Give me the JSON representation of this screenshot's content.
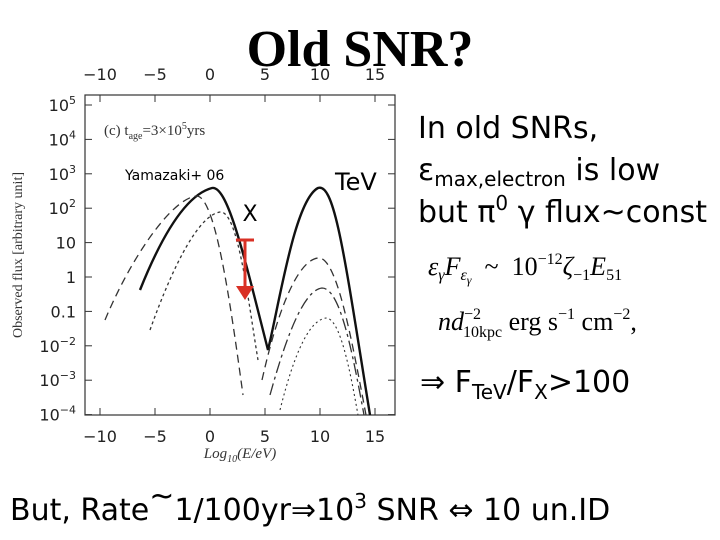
{
  "title": "Old SNR?",
  "figure": {
    "top_ticks": [
      "−10",
      "−5",
      "0",
      "5",
      "10",
      "15"
    ],
    "bottom_ticks": [
      "−10",
      "−5",
      "0",
      "5",
      "10",
      "15"
    ],
    "y_ticks": [
      [
        "10",
        "5"
      ],
      [
        "10",
        "4"
      ],
      [
        "10",
        "3"
      ],
      [
        "10",
        "2"
      ],
      [
        "10"
      ],
      [
        "1"
      ],
      [
        "0.1"
      ],
      [
        "10",
        "−2"
      ],
      [
        "10",
        "−3"
      ],
      [
        "10",
        "−4"
      ]
    ],
    "y_label": "Observed flux [arbitrary unit]",
    "x_label": [
      "Log",
      "10",
      "(E/eV)"
    ],
    "panel": [
      "(c) t",
      "age",
      "=3×10",
      "5",
      "yrs"
    ],
    "citation": "Yamazaki+ 06",
    "x_band": "X",
    "tev_band": "TeV"
  },
  "notes": {
    "line1": "In old SNRs,",
    "line2": [
      "ε",
      "max,electron",
      " is low"
    ],
    "line3": [
      "but π",
      "0",
      " γ flux~const"
    ],
    "formula1": [
      "ε",
      "γ",
      "F",
      "ε",
      "γ",
      "  ~  10",
      "−12",
      "ζ",
      "−1",
      "E",
      "51"
    ],
    "formula2": [
      "nd",
      "−2",
      "10kpc",
      " erg s",
      "−1",
      " cm",
      "−2",
      ","
    ],
    "ratio": [
      "⇒ F",
      "TeV",
      "/F",
      "X",
      ">100"
    ],
    "bottom": [
      "But, Rate",
      "~",
      "1/100yr⇒10",
      "3",
      " SNR ⇔ 10 un.ID"
    ]
  }
}
